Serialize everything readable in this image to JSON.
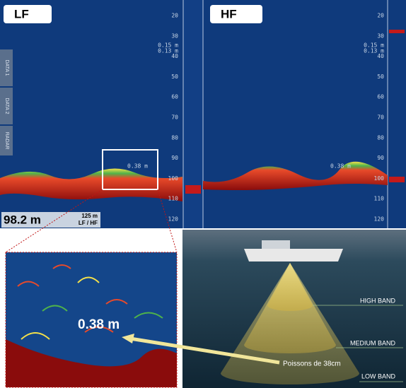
{
  "lf_panel": {
    "label": "LF",
    "depth_scale": [
      20,
      30,
      40,
      50,
      60,
      70,
      80,
      90,
      100,
      110,
      120
    ],
    "range_labels": [
      "0.15 m",
      "0.13 m"
    ],
    "target_label": "0.38 m",
    "side_tabs": [
      "DATA 1",
      "DATA 2",
      "RADAR"
    ],
    "depth_readout": "98.2 m",
    "range": "125 m",
    "mode": "LF / HF"
  },
  "hf_panel": {
    "label": "HF",
    "depth_scale": [
      20,
      30,
      40,
      50,
      60,
      70,
      80,
      90,
      100,
      110,
      120
    ],
    "range_labels": [
      "0.15 m",
      "0.13 m"
    ],
    "target_label": "0.38 m"
  },
  "zoom": {
    "target_label": "0.38 m"
  },
  "diagram": {
    "bands": [
      "HIGH BAND",
      "MEDIUM BAND",
      "LOW BAND"
    ],
    "callout": "Poissons de 38cm"
  }
}
